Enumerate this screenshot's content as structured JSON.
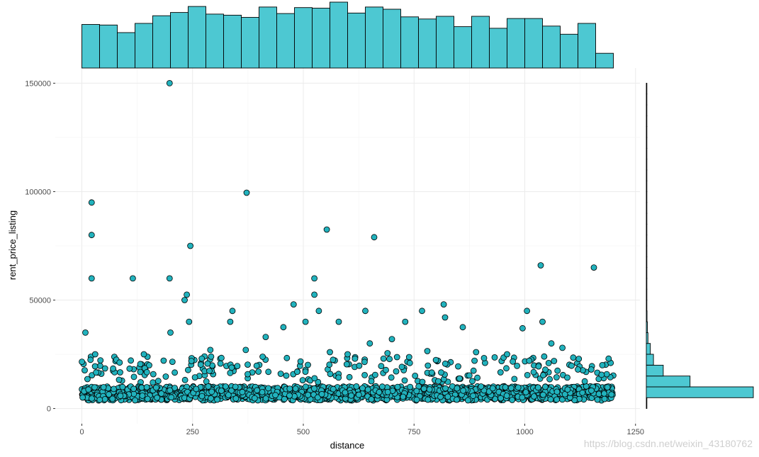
{
  "chart_data": [
    {
      "type": "scatter",
      "name_in_figure": "main-scatter",
      "xlabel": "distance",
      "ylabel": "rent_price_listing",
      "xlim": [
        -60,
        1260
      ],
      "ylim": [
        -7000,
        157000
      ],
      "x_ticks": [
        0,
        250,
        500,
        750,
        1000,
        1250
      ],
      "x_tick_labels": [
        "0",
        "250",
        "500",
        "750",
        "1000",
        "1250"
      ],
      "y_ticks": [
        0,
        50000,
        100000,
        150000
      ],
      "y_tick_labels": [
        "0",
        "50000",
        "100000",
        "150000"
      ],
      "grid": true,
      "point_fill": "#21b2bd",
      "point_stroke": "#000000",
      "points": [
        [
          198,
          150000
        ],
        [
          372,
          99500
        ],
        [
          22,
          95000
        ],
        [
          22,
          80000
        ],
        [
          553,
          82500
        ],
        [
          660,
          79000
        ],
        [
          245,
          75000
        ],
        [
          22,
          60000
        ],
        [
          115,
          60000
        ],
        [
          198,
          60000
        ],
        [
          525,
          60000
        ],
        [
          1036,
          66000
        ],
        [
          1156,
          65000
        ],
        [
          525,
          52500
        ],
        [
          237,
          52500
        ],
        [
          232,
          50000
        ],
        [
          478,
          48000
        ],
        [
          817,
          48000
        ],
        [
          535,
          45000
        ],
        [
          640,
          45000
        ],
        [
          768,
          45000
        ],
        [
          1005,
          45000
        ],
        [
          340,
          45000
        ],
        [
          335,
          40000
        ],
        [
          242,
          40000
        ],
        [
          505,
          40000
        ],
        [
          580,
          40000
        ],
        [
          730,
          40000
        ],
        [
          1040,
          40000
        ],
        [
          820,
          42000
        ],
        [
          8,
          35000
        ],
        [
          200,
          35000
        ],
        [
          455,
          37500
        ],
        [
          860,
          37500
        ],
        [
          995,
          37000
        ],
        [
          415,
          33000
        ],
        [
          650,
          30000
        ],
        [
          700,
          32000
        ],
        [
          1060,
          30000
        ],
        [
          1085,
          28000
        ],
        [
          30,
          25000
        ],
        [
          140,
          25000
        ],
        [
          290,
          27000
        ],
        [
          370,
          27000
        ],
        [
          560,
          26000
        ],
        [
          600,
          25000
        ],
        [
          690,
          25500
        ],
        [
          780,
          26500
        ],
        [
          890,
          26000
        ],
        [
          960,
          25000
        ],
        [
          1010,
          22000
        ],
        [
          1150,
          18000
        ],
        [
          1175,
          20000
        ],
        [
          1120,
          18000
        ]
      ],
      "bulk": {
        "x_min": 0,
        "x_max": 1200,
        "y_center": 7000,
        "y_spread": 6500,
        "count": 1700,
        "seed": 7
      }
    },
    {
      "type": "bar",
      "name_in_figure": "x-marginal-histogram",
      "orientation": "vertical",
      "bin_start": 0,
      "bin_width": 40,
      "counts": [
        80,
        79,
        65,
        82,
        96,
        102,
        113,
        99,
        97,
        93,
        112,
        100,
        111,
        110,
        121,
        101,
        112,
        108,
        94,
        90,
        95,
        76,
        95,
        73,
        91,
        91,
        77,
        62,
        82,
        27
      ],
      "ylim": [
        0,
        121
      ],
      "fill": "#4dc8d2",
      "stroke": "#000000"
    },
    {
      "type": "bar",
      "name_in_figure": "y-marginal-histogram",
      "orientation": "horizontal",
      "bin_start": 0,
      "bin_width": 5000,
      "counts": [
        5,
        1200,
        490,
        190,
        80,
        45,
        18,
        12,
        8,
        6,
        4,
        3,
        3,
        2,
        2,
        1,
        1,
        1,
        1,
        1,
        1,
        1,
        1,
        1,
        1,
        1,
        1,
        1,
        1,
        1
      ],
      "xlim": [
        0,
        1200
      ],
      "fill": "#4dc8d2",
      "stroke": "#000000"
    }
  ],
  "watermark": "https://blog.csdn.net/weixin_43180762"
}
